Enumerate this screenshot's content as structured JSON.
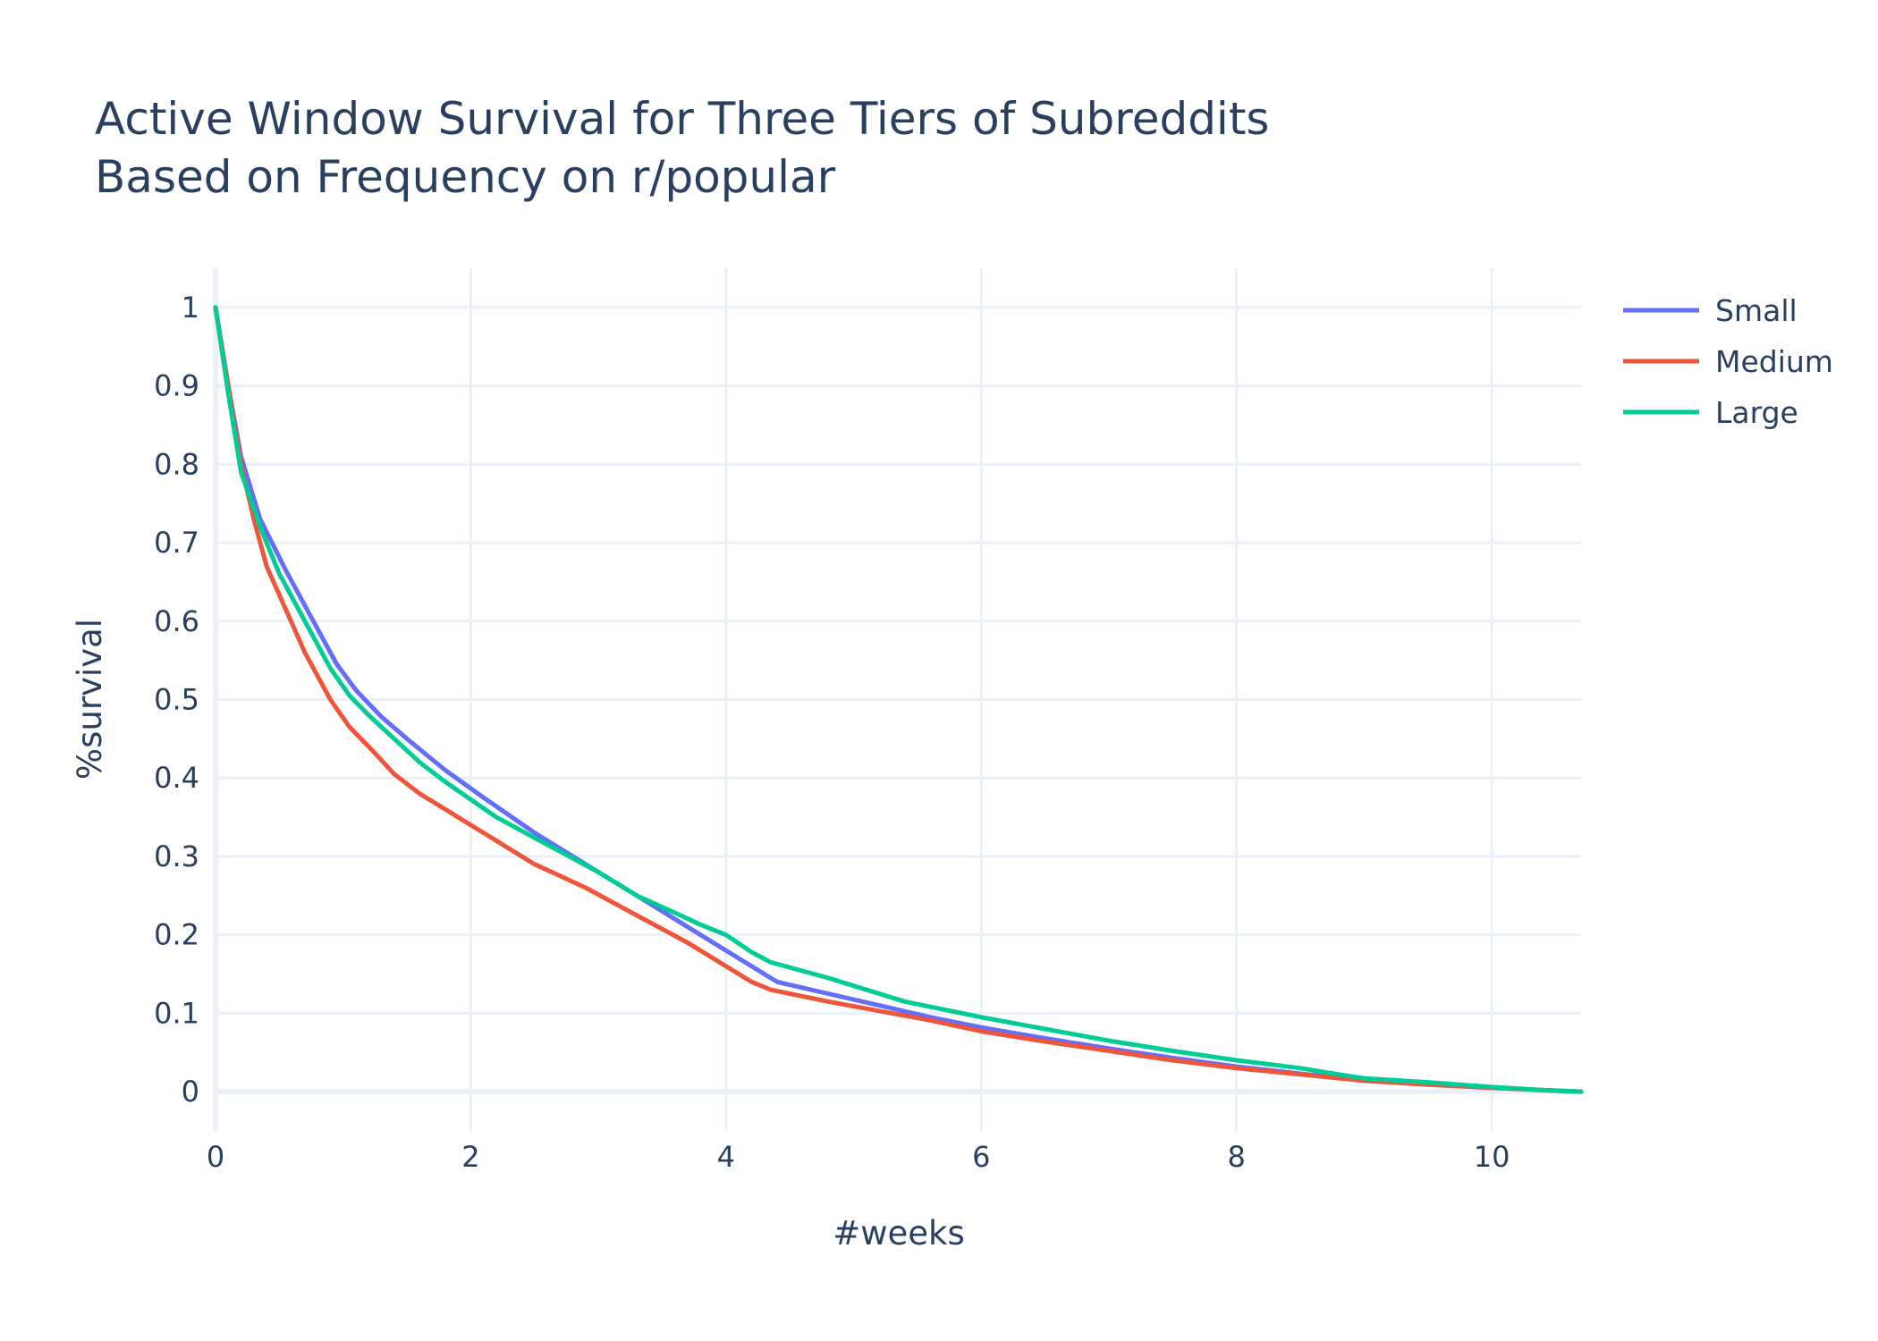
{
  "chart_data": {
    "type": "line",
    "title": "Active Window Survival for Three Tiers of Subreddits",
    "subtitle": "Based on Frequency on r/popular",
    "xlabel": "#weeks",
    "ylabel": "%survival",
    "xlim": [
      0,
      10.7
    ],
    "ylim": [
      -0.05,
      1.05
    ],
    "x_ticks": [
      0,
      2,
      4,
      6,
      8,
      10
    ],
    "x_tick_labels": [
      "0",
      "2",
      "4",
      "6",
      "8",
      "10"
    ],
    "y_ticks": [
      0,
      0.1,
      0.2,
      0.3,
      0.4,
      0.5,
      0.6,
      0.7,
      0.8,
      0.9,
      1
    ],
    "y_tick_labels": [
      "0",
      "0.1",
      "0.2",
      "0.3",
      "0.4",
      "0.5",
      "0.6",
      "0.7",
      "0.8",
      "0.9",
      "1"
    ],
    "grid": true,
    "legend_position": "top-right",
    "series": [
      {
        "name": "Small",
        "color": "#636efa",
        "x": [
          0,
          0.1,
          0.2,
          0.35,
          0.55,
          0.75,
          0.95,
          1.1,
          1.3,
          1.5,
          1.8,
          2.1,
          2.5,
          2.9,
          3.2,
          3.6,
          4.0,
          4.2,
          4.4,
          4.8,
          5.2,
          5.6,
          6.0,
          6.5,
          7.0,
          7.5,
          8.0,
          8.5,
          9.0,
          9.5,
          10.0,
          10.4,
          10.7
        ],
        "y": [
          1.0,
          0.9,
          0.81,
          0.73,
          0.665,
          0.605,
          0.545,
          0.512,
          0.478,
          0.45,
          0.41,
          0.375,
          0.33,
          0.29,
          0.26,
          0.22,
          0.18,
          0.16,
          0.14,
          0.125,
          0.11,
          0.095,
          0.082,
          0.068,
          0.055,
          0.043,
          0.032,
          0.023,
          0.015,
          0.01,
          0.005,
          0.002,
          0.0
        ]
      },
      {
        "name": "Medium",
        "color": "#ef553b",
        "x": [
          0,
          0.1,
          0.2,
          0.3,
          0.4,
          0.55,
          0.7,
          0.9,
          1.05,
          1.2,
          1.4,
          1.6,
          1.8,
          2.1,
          2.5,
          2.9,
          3.3,
          3.7,
          4.0,
          4.2,
          4.35,
          4.8,
          5.2,
          5.6,
          6.0,
          6.5,
          7.0,
          7.5,
          8.0,
          8.5,
          9.0,
          9.5,
          10.0,
          10.4,
          10.7
        ],
        "y": [
          1.0,
          0.9,
          0.8,
          0.73,
          0.67,
          0.615,
          0.56,
          0.5,
          0.465,
          0.44,
          0.405,
          0.38,
          0.36,
          0.33,
          0.29,
          0.26,
          0.225,
          0.19,
          0.16,
          0.14,
          0.13,
          0.115,
          0.103,
          0.091,
          0.077,
          0.064,
          0.052,
          0.04,
          0.03,
          0.022,
          0.014,
          0.009,
          0.005,
          0.002,
          0.0
        ]
      },
      {
        "name": "Large",
        "color": "#00cc96",
        "x": [
          0,
          0.1,
          0.2,
          0.35,
          0.5,
          0.7,
          0.9,
          1.05,
          1.2,
          1.4,
          1.6,
          1.8,
          2.2,
          2.6,
          3.0,
          3.3,
          3.6,
          3.8,
          4.0,
          4.2,
          4.35,
          4.8,
          5.4,
          6.0,
          6.5,
          7.0,
          7.5,
          8.0,
          8.5,
          8.8,
          9.0,
          9.5,
          10.0,
          10.4,
          10.7
        ],
        "y": [
          1.0,
          0.89,
          0.79,
          0.72,
          0.66,
          0.6,
          0.54,
          0.505,
          0.48,
          0.45,
          0.42,
          0.395,
          0.35,
          0.315,
          0.28,
          0.25,
          0.228,
          0.213,
          0.2,
          0.178,
          0.165,
          0.145,
          0.115,
          0.095,
          0.08,
          0.065,
          0.052,
          0.04,
          0.03,
          0.022,
          0.017,
          0.012,
          0.006,
          0.002,
          0.0
        ]
      }
    ]
  }
}
